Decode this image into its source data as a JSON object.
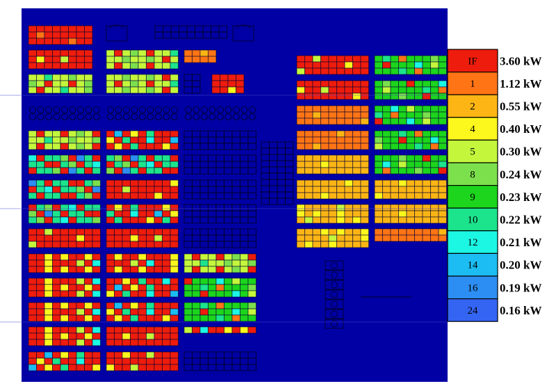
{
  "colors": {
    "IF": "#ee1c0c",
    "1": "#ff7414",
    "2": "#fcb514",
    "4": "#fcf71c",
    "5": "#c4f73c",
    "8": "#7ce04c",
    "9": "#1cd51c",
    "10": "#1ce48c",
    "12": "#1cf7e4",
    "14": "#1cbdf2",
    "16": "#2c8ef2",
    "24": "#3464f2",
    "background": "#0000a4",
    "grid_line": "#000033"
  },
  "legend": [
    {
      "code": "IF",
      "value": "3.60 kW"
    },
    {
      "code": "1",
      "value": "1.12 kW"
    },
    {
      "code": "2",
      "value": "0.55 kW"
    },
    {
      "code": "4",
      "value": "0.40 kW"
    },
    {
      "code": "5",
      "value": "0.30 kW"
    },
    {
      "code": "8",
      "value": "0.24 kW"
    },
    {
      "code": "9",
      "value": "0.23 kW"
    },
    {
      "code": "10",
      "value": "0.22 kW"
    },
    {
      "code": "12",
      "value": "0.21 kW"
    },
    {
      "code": "14",
      "value": "0.20 kW"
    },
    {
      "code": "16",
      "value": "0.19 kW"
    },
    {
      "code": "24",
      "value": "0.16 kW"
    }
  ],
  "patterns": {
    "redBase": [
      "IF",
      "IF",
      "IF",
      "IF",
      "IF",
      "IF",
      "IF",
      "IF",
      "IF",
      "IF",
      "IF",
      "IF",
      "4",
      "IF",
      "IF",
      "5"
    ],
    "redYellow": [
      "IF",
      "4",
      "IF",
      "IF",
      "4",
      "IF",
      "IF",
      "IF",
      "4",
      "IF",
      "IF",
      "IF",
      "5",
      "IF",
      "12",
      "IF",
      "IF",
      "4"
    ],
    "lime": [
      "5",
      "5",
      "8",
      "5",
      "IF",
      "5",
      "5",
      "IF",
      "5",
      "8",
      "5",
      "IF",
      "5",
      "5",
      "10",
      "5",
      "5",
      "8"
    ],
    "tealMix": [
      "10",
      "IF",
      "10",
      "10",
      "IF",
      "IF",
      "10",
      "8",
      "IF",
      "10",
      "12",
      "IF",
      "10",
      "10",
      "8",
      "IF",
      "16"
    ],
    "green": [
      "9",
      "9",
      "9",
      "8",
      "9",
      "9",
      "IF",
      "9",
      "9",
      "9",
      "12",
      "9",
      "5",
      "9",
      "9",
      "9",
      "9",
      "10",
      "9",
      "1"
    ],
    "orange": [
      "1",
      "1",
      "1",
      "1",
      "1",
      "1",
      "1",
      "1",
      "1",
      "1",
      "1",
      "2",
      "1",
      "1",
      "1"
    ],
    "amber": [
      "2",
      "2",
      "2",
      "2",
      "2",
      "2",
      "2",
      "2",
      "2",
      "4",
      "2",
      "2",
      "2",
      "2",
      "2"
    ],
    "yellowAmber": [
      "4",
      "2",
      "2",
      "4",
      "2",
      "2",
      "2",
      "2",
      "5",
      "2",
      "2",
      "2",
      "4",
      "2"
    ],
    "redOrange": [
      "IF",
      "IF",
      "IF",
      "IF",
      "IF",
      "IF",
      "IF",
      "IF",
      "IF",
      "1",
      "IF",
      "IF"
    ],
    "mixBright": [
      "IF",
      "4",
      "IF",
      "10",
      "IF",
      "IF",
      "12",
      "IF",
      "IF",
      "14",
      "IF",
      "4",
      "IF",
      "10",
      "IF",
      "IF"
    ]
  }
}
